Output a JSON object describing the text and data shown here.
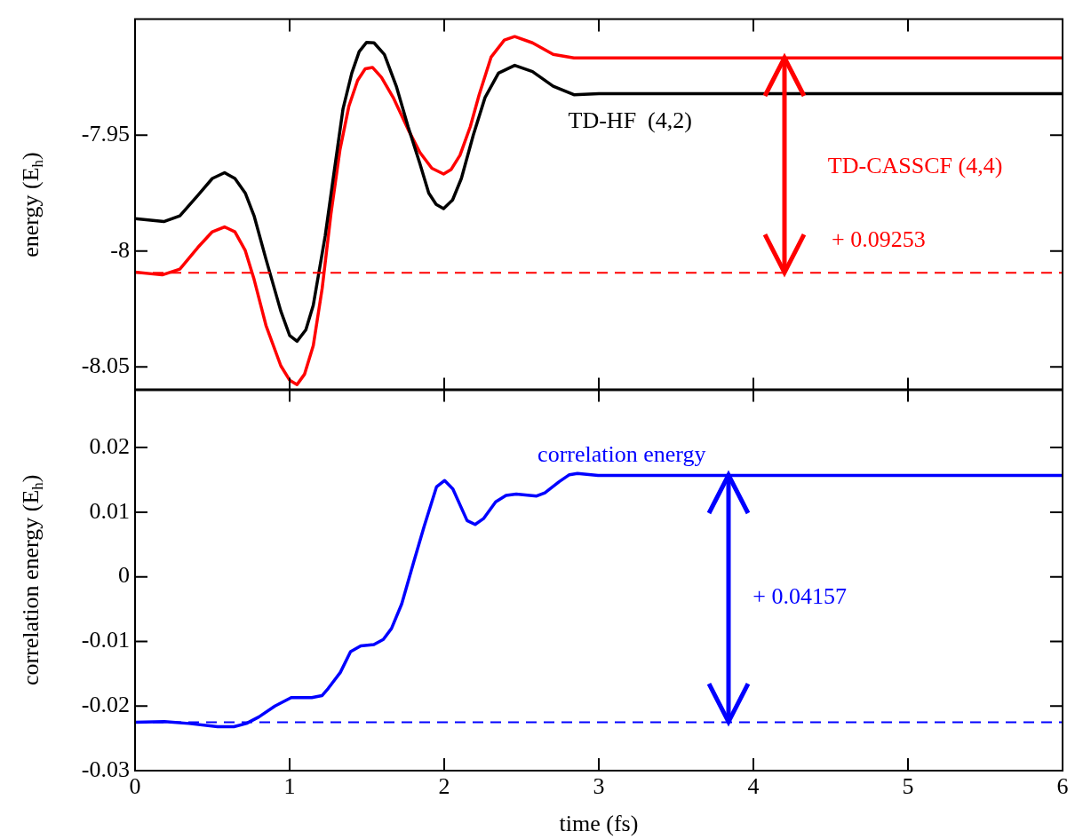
{
  "chart_data": [
    {
      "type": "line",
      "ylabel": "energy (E$_{h}$)",
      "xlim": [
        0,
        6
      ],
      "xticks": [
        0,
        1,
        2,
        3,
        4,
        5,
        6
      ],
      "ylim": [
        -8.06,
        -7.9
      ],
      "yticks": [
        -7.95,
        -8,
        -8.05
      ],
      "tick_labels": "y",
      "series": [
        {
          "name": "TD-HF  (4,2)",
          "color": "#000000",
          "x": [
            0,
            0.186,
            0.29,
            0.406,
            0.5,
            0.579,
            0.646,
            0.713,
            0.77,
            0.847,
            0.943,
            1.0,
            1.048,
            1.105,
            1.153,
            1.23,
            1.287,
            1.345,
            1.402,
            1.45,
            1.498,
            1.546,
            1.613,
            1.69,
            1.766,
            1.843,
            1.9,
            1.948,
            1.996,
            2.054,
            2.111,
            2.188,
            2.264,
            2.351,
            2.456,
            2.571,
            2.705,
            2.839,
            3.0,
            6.0
          ],
          "values": [
            -7.986,
            -7.9873,
            -7.9848,
            -7.976,
            -7.9687,
            -7.9662,
            -7.9687,
            -7.975,
            -7.9848,
            -8.0035,
            -8.0259,
            -8.0364,
            -8.0389,
            -8.034,
            -8.0234,
            -7.9935,
            -7.9662,
            -7.9388,
            -7.9233,
            -7.914,
            -7.91,
            -7.9102,
            -7.9152,
            -7.9289,
            -7.9463,
            -7.9624,
            -7.975,
            -7.9799,
            -7.9817,
            -7.978,
            -7.9687,
            -7.95,
            -7.9338,
            -7.9233,
            -7.9199,
            -7.9226,
            -7.9289,
            -7.9326,
            -7.9321,
            -7.9321
          ]
        },
        {
          "name": "TD-CASSCF (4,4)",
          "color": "#ff0000",
          "x": [
            0,
            0.176,
            0.29,
            0.406,
            0.5,
            0.579,
            0.646,
            0.713,
            0.77,
            0.847,
            0.943,
            1.0,
            1.048,
            1.096,
            1.153,
            1.211,
            1.268,
            1.326,
            1.383,
            1.44,
            1.489,
            1.536,
            1.594,
            1.67,
            1.766,
            1.843,
            1.92,
            1.996,
            2.044,
            2.102,
            2.169,
            2.226,
            2.303,
            2.389,
            2.456,
            2.571,
            2.705,
            2.839,
            3.0,
            6.0
          ],
          "values": [
            -8.0091,
            -8.0103,
            -8.0078,
            -7.9985,
            -7.9917,
            -7.9896,
            -7.9917,
            -7.9998,
            -8.0122,
            -8.0321,
            -8.0495,
            -8.0557,
            -8.0576,
            -8.0532,
            -8.0408,
            -8.0159,
            -7.9836,
            -7.9562,
            -7.9376,
            -7.9264,
            -7.9214,
            -7.9208,
            -7.9251,
            -7.9338,
            -7.9475,
            -7.9575,
            -7.9643,
            -7.9668,
            -7.9649,
            -7.9587,
            -7.9463,
            -7.9326,
            -7.9164,
            -7.909,
            -7.9075,
            -7.9102,
            -7.9152,
            -7.9167,
            -7.9167,
            -7.9167
          ]
        }
      ],
      "ref_lines": [
        {
          "axis": "y",
          "value": -8.0094,
          "color": "#ff0000",
          "line_style": "dashed"
        }
      ],
      "annotations": [
        "+ 0.09253"
      ]
    },
    {
      "type": "line",
      "xlabel": "time (fs)",
      "ylabel": "correlation energy (E$_{h}$)",
      "xlim": [
        0,
        6
      ],
      "xticks": [
        0,
        1,
        2,
        3,
        4,
        5,
        6
      ],
      "ylim": [
        -0.03,
        0.029
      ],
      "yticks": [
        -0.03,
        -0.02,
        -0.01,
        0,
        0.01,
        0.02
      ],
      "series": [
        {
          "name": "correlation energy",
          "color": "#0000ff",
          "x": [
            0,
            0.19,
            0.349,
            0.534,
            0.64,
            0.72,
            0.8,
            0.905,
            1.01,
            1.143,
            1.209,
            1.249,
            1.328,
            1.394,
            1.46,
            1.545,
            1.606,
            1.659,
            1.725,
            1.804,
            1.87,
            1.95,
            2.003,
            2.056,
            2.148,
            2.2,
            2.254,
            2.333,
            2.4,
            2.466,
            2.598,
            2.651,
            2.743,
            2.81,
            2.862,
            2.995,
            6.0
          ],
          "values": [
            -0.0225,
            -0.0224,
            -0.0227,
            -0.0232,
            -0.0232,
            -0.0227,
            -0.0217,
            -0.02,
            -0.0187,
            -0.0187,
            -0.0184,
            -0.0173,
            -0.0148,
            -0.0116,
            -0.0107,
            -0.0105,
            -0.0097,
            -0.008,
            -0.0042,
            0.0024,
            0.0078,
            0.0139,
            0.0149,
            0.0136,
            0.0087,
            0.0081,
            0.009,
            0.0116,
            0.0126,
            0.0128,
            0.0125,
            0.013,
            0.0147,
            0.0158,
            0.016,
            0.0157,
            0.0157
          ]
        }
      ],
      "ref_lines": [
        {
          "axis": "y",
          "value": -0.0225,
          "color": "#0000ff",
          "line_style": "dashed"
        }
      ],
      "annotations": [
        "+ 0.04157"
      ]
    }
  ]
}
